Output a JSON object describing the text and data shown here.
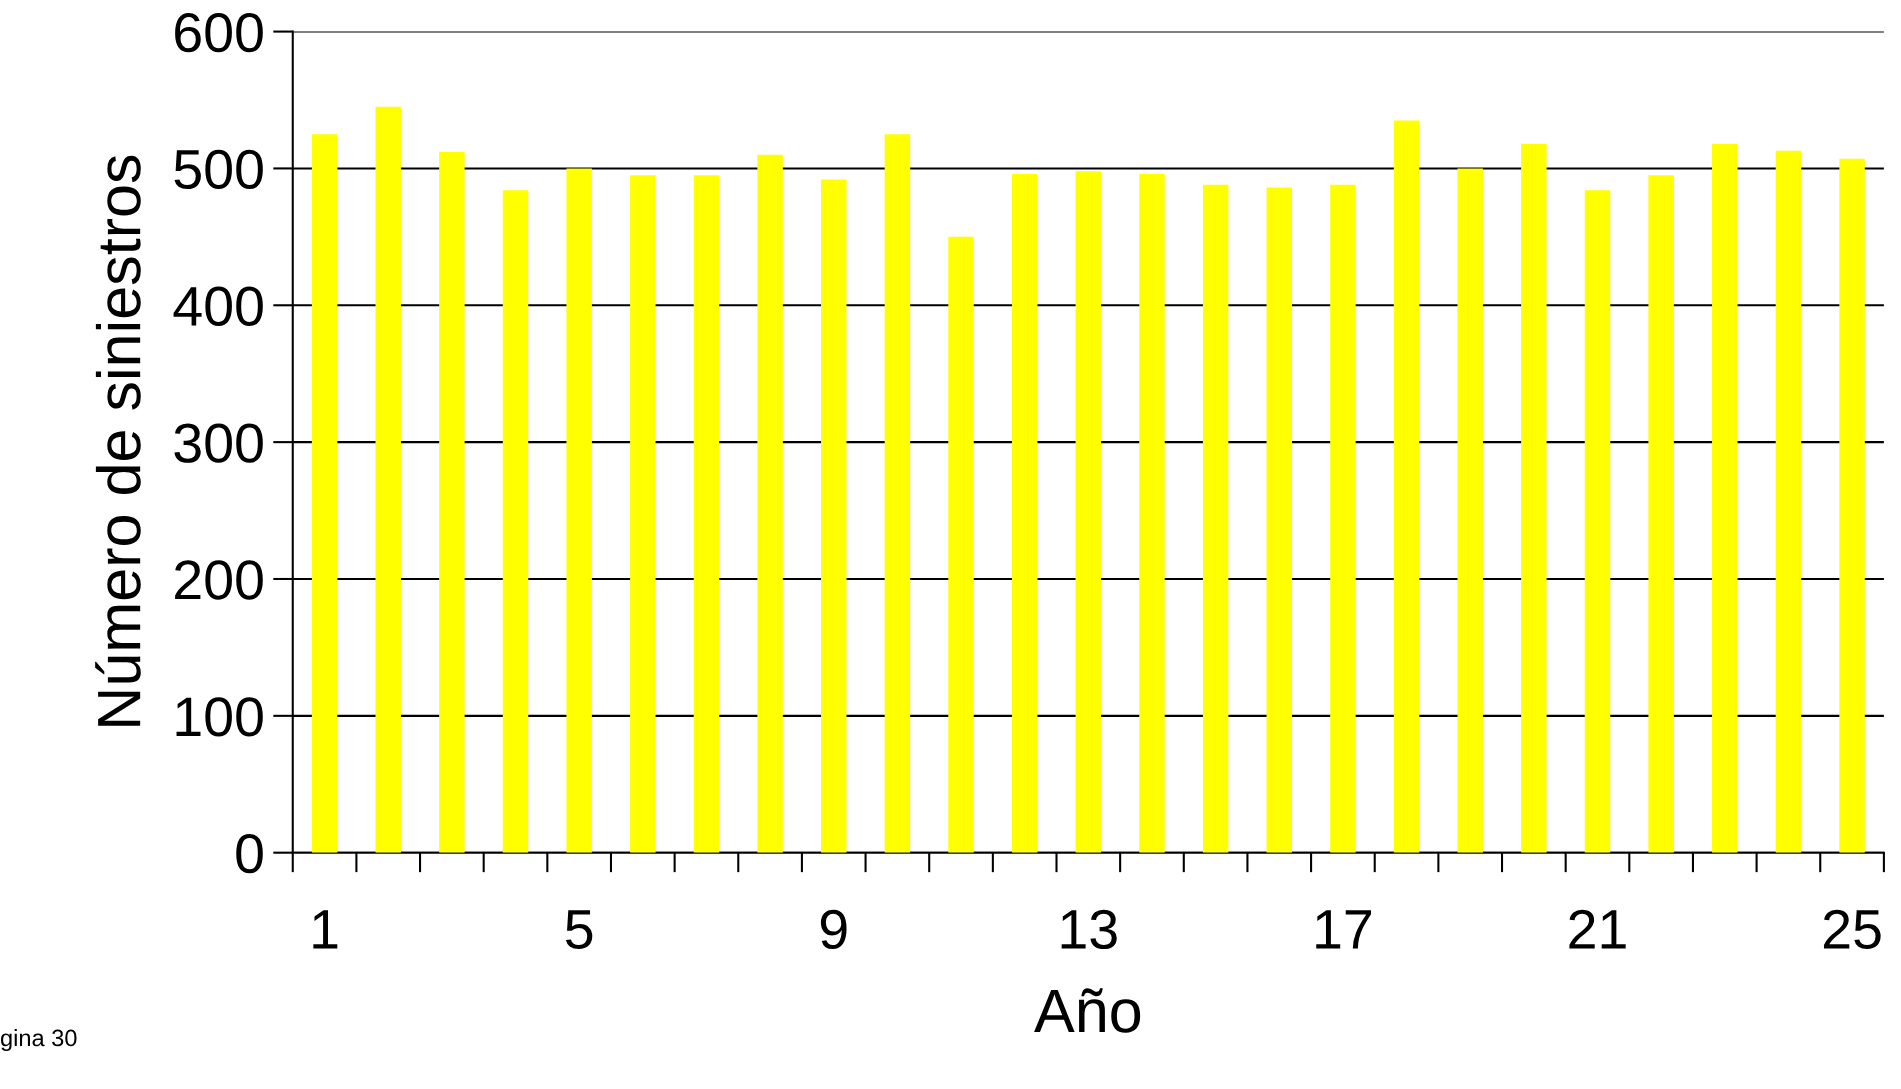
{
  "chart_data": {
    "type": "bar",
    "xlabel": "Año",
    "ylabel": "Número de siniestros",
    "categories": [
      "1",
      null,
      null,
      null,
      "5",
      null,
      null,
      null,
      "9",
      null,
      null,
      null,
      "13",
      null,
      null,
      null,
      "17",
      null,
      null,
      null,
      "21",
      null,
      null,
      null,
      "25"
    ],
    "values": [
      525,
      545,
      512,
      484,
      500,
      495,
      495,
      510,
      492,
      525,
      450,
      496,
      498,
      496,
      488,
      486,
      488,
      535,
      500,
      518,
      484,
      495,
      518,
      513,
      507
    ],
    "color": "#ffff00",
    "ylim": [
      0,
      600
    ],
    "yticks": [
      0,
      100,
      200,
      300,
      400,
      500,
      600
    ],
    "grid": "y",
    "legend": false,
    "annotations": [
      "gina 30"
    ]
  }
}
